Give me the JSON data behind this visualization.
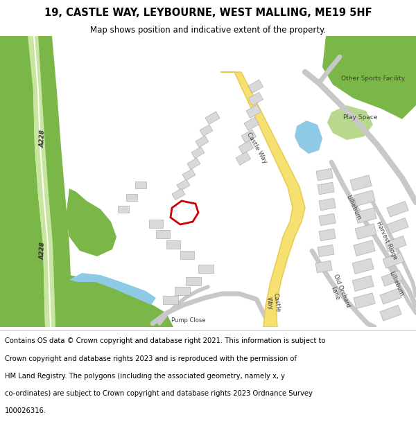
{
  "title": "19, CASTLE WAY, LEYBOURNE, WEST MALLING, ME19 5HF",
  "subtitle": "Map shows position and indicative extent of the property.",
  "footer_lines": [
    "Contains OS data © Crown copyright and database right 2021. This information is subject to",
    "Crown copyright and database rights 2023 and is reproduced with the permission of",
    "HM Land Registry. The polygons (including the associated geometry, namely x, y",
    "co-ordinates) are subject to Crown copyright and database rights 2023 Ordnance Survey",
    "100026316."
  ],
  "map_bg": "#ffffff",
  "road_yellow": "#e8c84a",
  "road_yellow_fill": "#f5e070",
  "green_dark": "#7ab648",
  "green_light": "#b8d98d",
  "water_blue": "#8ecae6",
  "building_fill": "#d9d9d9",
  "building_stroke": "#b0b0b0",
  "road_gray": "#c8c8c8",
  "road_gray_dark": "#a0a0a0",
  "property_outline": "#cc0000",
  "text_dark": "#404040",
  "title_fontsize": 10.5,
  "subtitle_fontsize": 8.5,
  "footer_fontsize": 7.2
}
